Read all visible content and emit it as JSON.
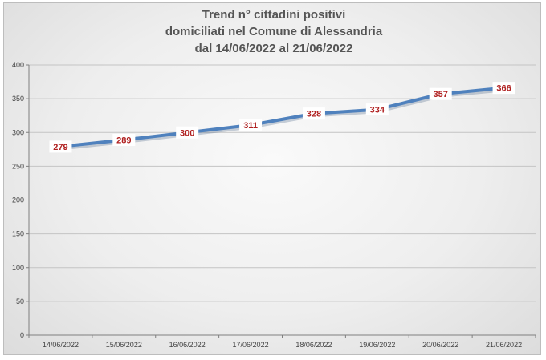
{
  "chart_data": {
    "type": "line",
    "title_lines": [
      "Trend n° cittadini positivi",
      "domiciliati nel Comune di Alessandria",
      "dal 14/06/2022 al 21/06/2022"
    ],
    "categories": [
      "14/06/2022",
      "15/06/2022",
      "16/06/2022",
      "17/06/2022",
      "18/06/2022",
      "19/06/2022",
      "20/06/2022",
      "21/06/2022"
    ],
    "series": [
      {
        "values": [
          279,
          289,
          300,
          311,
          328,
          334,
          357,
          366
        ],
        "color": "#4f81bd"
      }
    ],
    "data_labels": [
      "279",
      "289",
      "300",
      "311",
      "328",
      "334",
      "357",
      "366"
    ],
    "y_ticks": [
      "0",
      "50",
      "100",
      "150",
      "200",
      "250",
      "300",
      "350",
      "400"
    ],
    "ylim": [
      0,
      400
    ],
    "grid": true,
    "legend": "none",
    "data_label_color": "#b02020"
  }
}
